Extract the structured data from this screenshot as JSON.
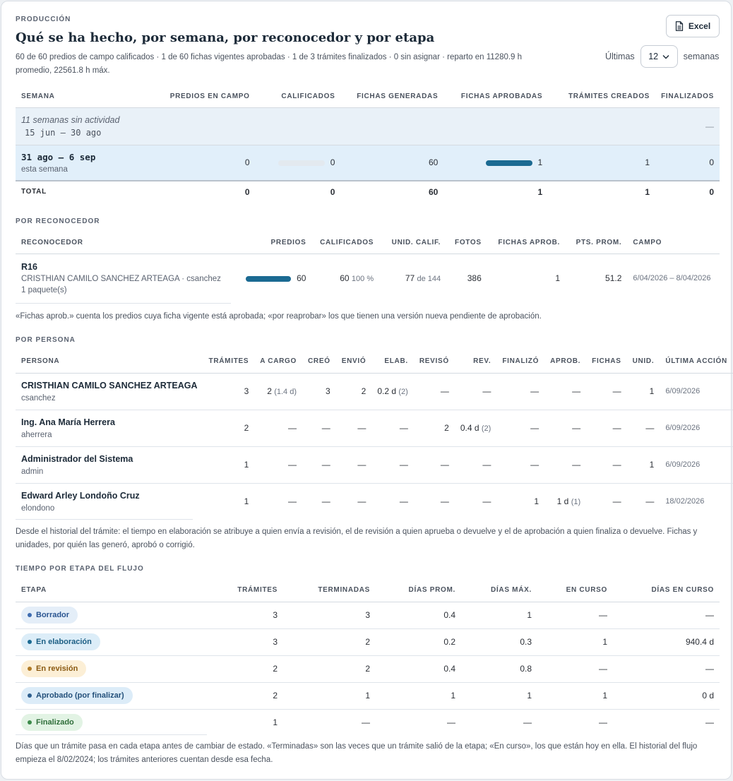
{
  "header": {
    "eyebrow": "PRODUCCIÓN",
    "title": "Qué se ha hecho, por semana, por reconocedor y por etapa",
    "subtitle": "60 de 60 predios de campo calificados · 1 de 60 fichas vigentes aprobadas · 1 de 3 trámites finalizados · 0 sin asignar · reparto en 11280.9 h promedio, 22561.8 h máx.",
    "excel_label": "Excel",
    "weeks_prefix": "Últimas",
    "weeks_value": "12",
    "weeks_suffix": "semanas"
  },
  "weekly": {
    "columns": [
      "SEMANA",
      "PREDIOS EN CAMPO",
      "CALIFICADOS",
      "FICHAS GENERADAS",
      "FICHAS APROBADAS",
      "TRÁMITES CREADOS",
      "FINALIZADOS"
    ],
    "idle": {
      "label": "11 semanas sin actividad",
      "range": "15 jun – 30 ago",
      "dash": "—"
    },
    "current": {
      "range": "31 ago – 6 sep",
      "note": "esta semana",
      "predios": "0",
      "calificados": "0",
      "calificados_fill": 0,
      "fichas_generadas": "60",
      "fichas_aprobadas": "1",
      "fichas_aprobadas_fill": 1,
      "tramites_creados": "1",
      "finalizados": "0"
    },
    "total": {
      "label": "TOTAL",
      "predios": "0",
      "calificados": "0",
      "fichas_generadas": "60",
      "fichas_aprobadas": "1",
      "tramites_creados": "1",
      "finalizados": "0"
    }
  },
  "recon": {
    "heading": "POR RECONOCEDOR",
    "columns": [
      "RECONOCEDOR",
      "PREDIOS",
      "CALIFICADOS",
      "UNID. CALIF.",
      "FOTOS",
      "FICHAS APROB.",
      "PTS. PROM.",
      "CAMPO"
    ],
    "row": {
      "code": "R16",
      "name": "CRISTHIAN CAMILO SANCHEZ ARTEAGA · csanchez",
      "packages": "1 paquete(s)",
      "predios": "60",
      "predios_fill": 1,
      "calificados": "60",
      "calificados_pct": "100 %",
      "unid": "77",
      "unid_of": "de 144",
      "fotos": "386",
      "fichas": "1",
      "pts": "51.2",
      "campo": "6/04/2026 – 8/04/2026"
    },
    "note": "«Fichas aprob.» cuenta los predios cuya ficha vigente está aprobada; «por reaprobar» los que tienen una versión nueva pendiente de aprobación."
  },
  "persona": {
    "heading": "POR PERSONA",
    "columns": [
      "PERSONA",
      "TRÁMITES",
      "A CARGO",
      "CREÓ",
      "ENVIÓ",
      "ELAB.",
      "REVISÓ",
      "REV.",
      "FINALIZÓ",
      "APROB.",
      "FICHAS",
      "UNID.",
      "ÚLTIMA ACCIÓN"
    ],
    "rows": [
      {
        "name": "CRISTHIAN CAMILO SANCHEZ ARTEAGA",
        "user": "csanchez",
        "tramites": "3",
        "acargo": "2",
        "acargo_x": "(1.4 d)",
        "creo": "3",
        "envio": "2",
        "elab": "0.2 d",
        "elab_x": "(2)",
        "reviso": "—",
        "rev": "—",
        "rev_x": "",
        "finalizo": "—",
        "aprob": "—",
        "aprob_x": "",
        "fichas": "—",
        "unid": "1",
        "ultima": "6/09/2026"
      },
      {
        "name": "Ing. Ana María Herrera",
        "user": "aherrera",
        "tramites": "2",
        "acargo": "—",
        "acargo_x": "",
        "creo": "—",
        "envio": "—",
        "elab": "—",
        "elab_x": "",
        "reviso": "2",
        "rev": "0.4 d",
        "rev_x": "(2)",
        "finalizo": "—",
        "aprob": "—",
        "aprob_x": "",
        "fichas": "—",
        "unid": "—",
        "ultima": "6/09/2026"
      },
      {
        "name": "Administrador del Sistema",
        "user": "admin",
        "tramites": "1",
        "acargo": "—",
        "acargo_x": "",
        "creo": "—",
        "envio": "—",
        "elab": "—",
        "elab_x": "",
        "reviso": "—",
        "rev": "—",
        "rev_x": "",
        "finalizo": "—",
        "aprob": "—",
        "aprob_x": "",
        "fichas": "—",
        "unid": "1",
        "ultima": "6/09/2026"
      },
      {
        "name": "Edward Arley Londoño Cruz",
        "user": "elondono",
        "tramites": "1",
        "acargo": "—",
        "acargo_x": "",
        "creo": "—",
        "envio": "—",
        "elab": "—",
        "elab_x": "",
        "reviso": "—",
        "rev": "—",
        "rev_x": "",
        "finalizo": "1",
        "aprob": "1 d",
        "aprob_x": "(1)",
        "fichas": "—",
        "unid": "—",
        "ultima": "18/02/2026"
      }
    ],
    "note": "Desde el historial del trámite: el tiempo en elaboración se atribuye a quien envía a revisión, el de revisión a quien aprueba o devuelve y el de aprobación a quien finaliza o devuelve. Fichas y unidades, por quién las generó, aprobó o corrigió."
  },
  "etapas": {
    "heading": "TIEMPO POR ETAPA DEL FLUJO",
    "columns": [
      "ETAPA",
      "TRÁMITES",
      "TERMINADAS",
      "DÍAS PROM.",
      "DÍAS MÁX.",
      "EN CURSO",
      "DÍAS EN CURSO"
    ],
    "rows": [
      {
        "label": "Borrador",
        "bg": "#e4eef8",
        "fg": "#2a5591",
        "dot": "#3e6cb0",
        "tramites": "3",
        "terminadas": "3",
        "prom": "0.4",
        "max": "1",
        "curso": "—",
        "dias": "—"
      },
      {
        "label": "En elaboración",
        "bg": "#dcedf8",
        "fg": "#1b5e84",
        "dot": "#1b6a92",
        "tramites": "3",
        "terminadas": "2",
        "prom": "0.2",
        "max": "0.3",
        "curso": "1",
        "dias": "940.4 d"
      },
      {
        "label": "En revisión",
        "bg": "#fcefd6",
        "fg": "#8a5a12",
        "dot": "#b07a26",
        "tramites": "2",
        "terminadas": "2",
        "prom": "0.4",
        "max": "0.8",
        "curso": "—",
        "dias": "—"
      },
      {
        "label": "Aprobado (por finalizar)",
        "bg": "#dcecf8",
        "fg": "#23507a",
        "dot": "#2e5f8e",
        "tramites": "2",
        "terminadas": "1",
        "prom": "1",
        "max": "1",
        "curso": "1",
        "dias": "0 d"
      },
      {
        "label": "Finalizado",
        "bg": "#e2f3e4",
        "fg": "#2f6e3a",
        "dot": "#3c8a4a",
        "tramites": "1",
        "terminadas": "—",
        "prom": "—",
        "max": "—",
        "curso": "—",
        "dias": "—"
      }
    ],
    "note": "Días que un trámite pasa en cada etapa antes de cambiar de estado. «Terminadas» son las veces que un trámite salió de la etapa; «En curso», los que están hoy en ella. El historial del flujo empieza el 8/02/2024; los trámites anteriores cuentan desde esa fecha."
  },
  "icons": {
    "excel": "file-spreadsheet-icon",
    "chevron": "chevron-down-icon"
  }
}
